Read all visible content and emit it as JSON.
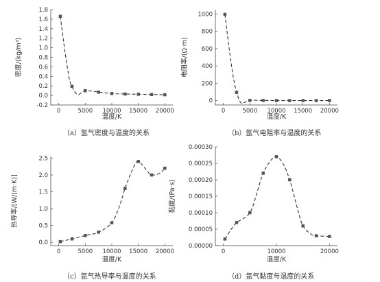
{
  "figure": {
    "captions": [
      "（a）氩气密度与温度的关系",
      "（b）氩气电阻率与温度的关系",
      "（c）氩气热导率与温度的关系",
      "（d）氩气黏度与温度的关系"
    ]
  },
  "chart_data": [
    {
      "type": "line",
      "title": "",
      "xlabel": "温度/K",
      "ylabel": "密度/(kg/m³)",
      "xlim": [
        -1500,
        21500
      ],
      "ylim": [
        -0.2,
        1.8
      ],
      "xticks": [
        0,
        5000,
        10000,
        15000,
        20000
      ],
      "xtick_labels": [
        "0",
        "5000",
        "10000",
        "15000",
        "20000"
      ],
      "yticks": [
        -0.2,
        0.0,
        0.2,
        0.4,
        0.6,
        0.8,
        1.0,
        1.2,
        1.4,
        1.6,
        1.8
      ],
      "ytick_labels": [
        "-0.2",
        "0.0",
        "0.2",
        "0.4",
        "0.6",
        "0.8",
        "1.0",
        "1.2",
        "1.4",
        "1.6",
        "1.8"
      ],
      "series": [
        {
          "x": [
            300,
            2500,
            5000,
            7500,
            10000,
            12500,
            15000,
            17500,
            20000
          ],
          "y": [
            1.66,
            0.19,
            0.1,
            0.07,
            0.04,
            0.03,
            0.025,
            0.02,
            0.015
          ],
          "curve": [
            [
              300,
              1.66
            ],
            [
              1200,
              0.9
            ],
            [
              2000,
              0.35
            ],
            [
              2500,
              0.19
            ],
            [
              3200,
              0.05
            ],
            [
              3800,
              0.02
            ],
            [
              5000,
              0.1
            ],
            [
              7500,
              0.07
            ],
            [
              10000,
              0.04
            ],
            [
              12500,
              0.03
            ],
            [
              15000,
              0.025
            ],
            [
              17500,
              0.02
            ],
            [
              20000,
              0.015
            ]
          ]
        }
      ]
    },
    {
      "type": "line",
      "title": "",
      "xlabel": "温度/K",
      "ylabel": "电阻率/(Ω·m)",
      "xlim": [
        -1500,
        21500
      ],
      "ylim": [
        -50,
        1050
      ],
      "xticks": [
        0,
        5000,
        10000,
        15000,
        20000
      ],
      "xtick_labels": [
        "0",
        "5000",
        "10000",
        "15000",
        "20000"
      ],
      "yticks": [
        0,
        200,
        400,
        600,
        800,
        1000
      ],
      "ytick_labels": [
        "0",
        "200",
        "400",
        "600",
        "800",
        "1000"
      ],
      "series": [
        {
          "x": [
            300,
            2500,
            5000,
            7500,
            10000,
            12500,
            15000,
            17500,
            20000
          ],
          "y": [
            995,
            95,
            3,
            2,
            1,
            1,
            1,
            1,
            1
          ],
          "curve": [
            [
              300,
              995
            ],
            [
              1100,
              600
            ],
            [
              1800,
              300
            ],
            [
              2500,
              95
            ],
            [
              3300,
              -25
            ],
            [
              4000,
              -20
            ],
            [
              5000,
              3
            ],
            [
              7500,
              2
            ],
            [
              10000,
              1
            ],
            [
              12500,
              1
            ],
            [
              15000,
              1
            ],
            [
              17500,
              1
            ],
            [
              20000,
              1
            ]
          ]
        }
      ]
    },
    {
      "type": "line",
      "title": "",
      "xlabel": "温度/K",
      "ylabel": "热导率/[W/(m·K)]",
      "xlim": [
        -1500,
        21500
      ],
      "ylim": [
        -0.1,
        2.55
      ],
      "xticks": [
        0,
        5000,
        10000,
        15000,
        20000
      ],
      "xtick_labels": [
        "0",
        "5000",
        "10000",
        "15000",
        "20000"
      ],
      "yticks": [
        0.0,
        0.5,
        1.0,
        1.5,
        2.0,
        2.5
      ],
      "ytick_labels": [
        "0.0",
        "0.5",
        "1.0",
        "1.5",
        "2.0",
        "2.5"
      ],
      "series": [
        {
          "x": [
            300,
            2500,
            5000,
            7500,
            10000,
            12500,
            15000,
            17500,
            20000
          ],
          "y": [
            0.02,
            0.1,
            0.2,
            0.3,
            0.58,
            1.6,
            2.4,
            2.0,
            2.2
          ],
          "curve": [
            [
              300,
              0.02
            ],
            [
              2500,
              0.1
            ],
            [
              5000,
              0.2
            ],
            [
              7500,
              0.3
            ],
            [
              10000,
              0.58
            ],
            [
              11500,
              1.1
            ],
            [
              12500,
              1.6
            ],
            [
              14000,
              2.2
            ],
            [
              15000,
              2.4
            ],
            [
              16500,
              2.15
            ],
            [
              17500,
              2.0
            ],
            [
              19000,
              2.05
            ],
            [
              20000,
              2.2
            ]
          ]
        }
      ]
    },
    {
      "type": "line",
      "title": "",
      "xlabel": "温度/K",
      "ylabel": "黏度/(Pa·s)",
      "xlim": [
        -1500,
        21500
      ],
      "ylim": [
        0.0,
        0.0003
      ],
      "xticks": [
        0,
        10000,
        20000
      ],
      "xtick_labels": [
        "0",
        "10000",
        "20000"
      ],
      "yticks": [
        0.0,
        5e-05,
        0.0001,
        0.00015,
        0.0002,
        0.00025,
        0.0003
      ],
      "ytick_labels": [
        "0.00000",
        "0.00005",
        "0.00010",
        "0.00015",
        "0.00020",
        "0.00025",
        "0.00030"
      ],
      "series": [
        {
          "x": [
            300,
            2500,
            5000,
            7500,
            10000,
            12500,
            15000,
            17500,
            20000
          ],
          "y": [
            2e-05,
            7e-05,
            0.0001,
            0.00022,
            0.00027,
            0.0002,
            6e-05,
            3e-05,
            2.8e-05
          ],
          "curve": [
            [
              300,
              2e-05
            ],
            [
              1500,
              5e-05
            ],
            [
              2500,
              7e-05
            ],
            [
              5000,
              0.0001
            ],
            [
              6500,
              0.00017
            ],
            [
              7500,
              0.00022
            ],
            [
              9000,
              0.00026
            ],
            [
              10000,
              0.00027
            ],
            [
              11200,
              0.00025
            ],
            [
              12500,
              0.0002
            ],
            [
              14000,
              0.00011
            ],
            [
              15000,
              6e-05
            ],
            [
              16500,
              3.5e-05
            ],
            [
              17500,
              3e-05
            ],
            [
              20000,
              2.8e-05
            ]
          ]
        }
      ]
    }
  ]
}
